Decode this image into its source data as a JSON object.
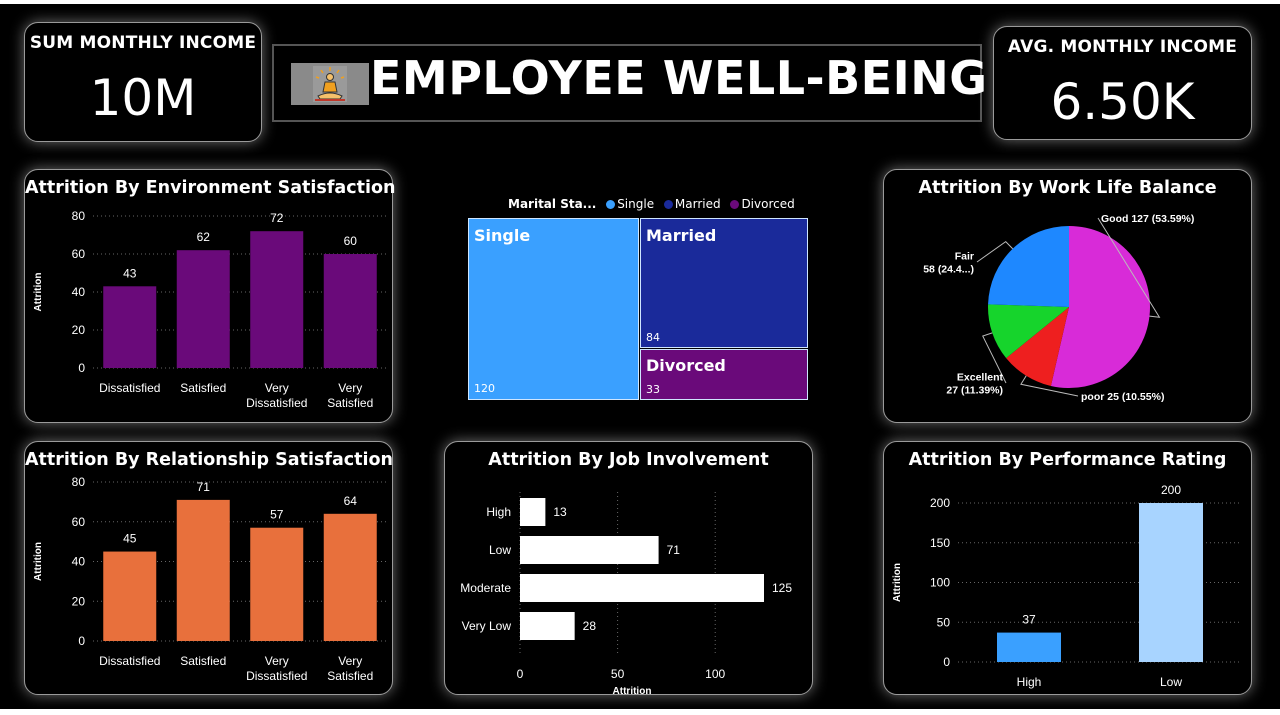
{
  "kpi_left": {
    "label": "SUM MONTHLY INCOME",
    "value": "10M"
  },
  "kpi_right": {
    "label": "AVG. MONTHLY INCOME",
    "value": "6.50K"
  },
  "header": {
    "title": "EMPLOYEE WELL-BEING",
    "logo_icon": "meditation-icon"
  },
  "colors": {
    "purple": "#6a0a7a",
    "orange": "#e8703c",
    "white": "#ffffff",
    "single": "#3aa0ff",
    "married": "#1a2a9a",
    "divorced": "#6a0a7a",
    "perf_high": "#3aa0ff",
    "perf_low": "#a8d4ff",
    "pie_good": "#d82bd8",
    "pie_poor": "#ee1f1f",
    "pie_excellent": "#16d42c",
    "pie_fair": "#1e88ff"
  },
  "chart_data": [
    {
      "id": "env",
      "type": "bar",
      "title": "Attrition By Environment Satisfaction",
      "ylabel": "Attrition",
      "categories": [
        "Dissatisfied",
        "Satisfied",
        "Very Dissatisfied",
        "Very Satisfied"
      ],
      "category_lines": [
        [
          "Dissatisfied"
        ],
        [
          "Satisfied"
        ],
        [
          "Very",
          "Dissatisfied"
        ],
        [
          "Very",
          "Satisfied"
        ]
      ],
      "values": [
        43,
        62,
        72,
        60
      ],
      "yticks": [
        0,
        20,
        40,
        60,
        80
      ],
      "ylim": [
        0,
        80
      ],
      "grid": true
    },
    {
      "id": "rel",
      "type": "bar",
      "title": "Attrition By Relationship Satisfaction",
      "ylabel": "Attrition",
      "categories": [
        "Dissatisfied",
        "Satisfied",
        "Very Dissatisfied",
        "Very Satisfied"
      ],
      "category_lines": [
        [
          "Dissatisfied"
        ],
        [
          "Satisfied"
        ],
        [
          "Very",
          "Dissatisfied"
        ],
        [
          "Very",
          "Satisfied"
        ]
      ],
      "values": [
        45,
        71,
        57,
        64
      ],
      "yticks": [
        0,
        20,
        40,
        60,
        80
      ],
      "ylim": [
        0,
        80
      ],
      "grid": true
    },
    {
      "id": "marital",
      "type": "treemap",
      "legend_title": "Marital Sta...",
      "items": [
        {
          "name": "Single",
          "value": 120
        },
        {
          "name": "Married",
          "value": 84
        },
        {
          "name": "Divorced",
          "value": 33
        }
      ]
    },
    {
      "id": "wlb",
      "type": "pie",
      "title": "Attrition By Work Life Balance",
      "slices": [
        {
          "name": "Good",
          "value": 127,
          "label": "Good 127 (53.59%)"
        },
        {
          "name": "poor",
          "value": 25,
          "label": "poor 25 (10.55%)"
        },
        {
          "name": "Excellent",
          "value": 27,
          "label_lines": [
            "Excellent",
            "27 (11.39%)"
          ]
        },
        {
          "name": "Fair",
          "value": 58,
          "label_lines": [
            "Fair",
            "58 (24.4...)"
          ]
        }
      ]
    },
    {
      "id": "job",
      "type": "bar-horizontal",
      "title": "Attrition By Job Involvement",
      "xlabel": "Attrition",
      "categories": [
        "High",
        "Low",
        "Moderate",
        "Very Low"
      ],
      "values": [
        13,
        71,
        125,
        28
      ],
      "xticks": [
        0,
        50,
        100
      ],
      "xlim": [
        0,
        125
      ],
      "grid": true
    },
    {
      "id": "perf",
      "type": "bar",
      "title": "Attrition By Performance Rating",
      "ylabel": "Attrition",
      "categories": [
        "High",
        "Low"
      ],
      "values": [
        37,
        200
      ],
      "yticks": [
        0,
        50,
        100,
        150,
        200
      ],
      "ylim": [
        0,
        200
      ],
      "grid": true
    }
  ]
}
